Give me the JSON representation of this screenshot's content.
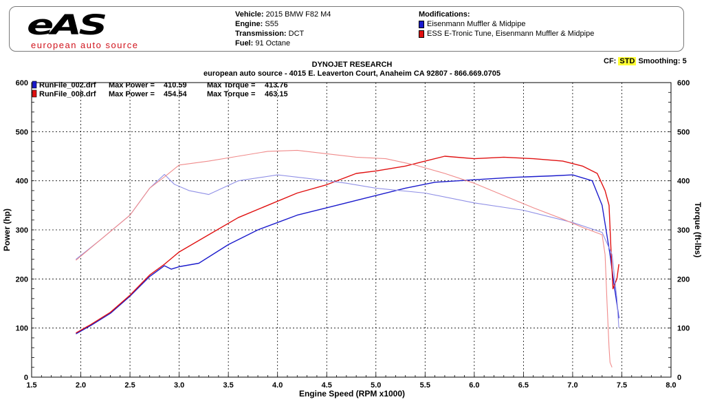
{
  "logo": {
    "word": "eAS",
    "subtitle": "european auto source"
  },
  "vehicle_info": {
    "vehicle_label": "Vehicle:",
    "vehicle": "2015 BMW F82 M4",
    "engine_label": "Engine:",
    "engine": "S55",
    "transmission_label": "Transmission:",
    "transmission": "DCT",
    "fuel_label": "Fuel:",
    "fuel": "91 Octane"
  },
  "modifications": {
    "title": "Modifications:",
    "items": [
      "Eisenmann Muffler & Midpipe",
      "ESS E-Tronic Tune, Eisenmann Muffler & Midpipe"
    ]
  },
  "header": {
    "title": "DYNOJET RESEARCH",
    "subtitle": "european auto source - 4015 E. Leaverton Court, Anaheim CA 92807 - 866.669.0705"
  },
  "cf": {
    "label": "CF:",
    "value": "STD",
    "smoothing_label": "Smoothing:",
    "smoothing": "5"
  },
  "colors": {
    "run1": "#1a1acc",
    "run2": "#e01010",
    "run1_light": "#8f8fe6",
    "run2_light": "#f08a8a"
  },
  "chart_data": {
    "type": "line",
    "xlabel": "Engine Speed (RPM x1000)",
    "ylabel": "Power (hp)",
    "y2label": "Torque (ft-lbs)",
    "xlim": [
      1.5,
      8.0
    ],
    "ylim": [
      0,
      600
    ],
    "y2lim": [
      0,
      600
    ],
    "xticks": [
      "1.5",
      "2.0",
      "2.5",
      "3.0",
      "3.5",
      "4.0",
      "4.5",
      "5.0",
      "5.5",
      "6.0",
      "6.5",
      "7.0",
      "7.5",
      "8.0"
    ],
    "yticks": [
      "0",
      "100",
      "200",
      "300",
      "400",
      "500",
      "600"
    ],
    "grid": true,
    "legend": [
      {
        "file": "RunFile_002.drf",
        "power_label": "Max Power =",
        "power": "410.59",
        "torque_label": "Max Torque =",
        "torque": "413.76"
      },
      {
        "file": "RunFile_008.drf",
        "power_label": "Max Power =",
        "power": "454.54",
        "torque_label": "Max Torque =",
        "torque": "463.15"
      }
    ],
    "series": [
      {
        "name": "RunFile_002.drf Power",
        "axis": "power",
        "x": [
          1.95,
          2.1,
          2.3,
          2.5,
          2.7,
          2.85,
          2.92,
          3.0,
          3.2,
          3.5,
          3.8,
          4.0,
          4.2,
          4.5,
          4.8,
          5.0,
          5.3,
          5.6,
          6.0,
          6.4,
          6.8,
          7.0,
          7.2,
          7.3,
          7.38,
          7.42,
          7.45,
          7.47
        ],
        "y": [
          88,
          105,
          130,
          165,
          205,
          227,
          220,
          225,
          232,
          270,
          300,
          315,
          330,
          345,
          360,
          370,
          385,
          397,
          402,
          407,
          410,
          412,
          400,
          350,
          250,
          190,
          150,
          120
        ]
      },
      {
        "name": "RunFile_008.drf Power",
        "axis": "power",
        "x": [
          1.95,
          2.1,
          2.3,
          2.5,
          2.7,
          2.85,
          3.0,
          3.3,
          3.6,
          3.9,
          4.2,
          4.5,
          4.8,
          5.0,
          5.3,
          5.5,
          5.7,
          6.0,
          6.3,
          6.6,
          6.9,
          7.1,
          7.25,
          7.33,
          7.37,
          7.39,
          7.41,
          7.45,
          7.47
        ],
        "y": [
          90,
          107,
          132,
          167,
          208,
          230,
          255,
          290,
          325,
          350,
          375,
          392,
          415,
          420,
          430,
          440,
          450,
          445,
          448,
          445,
          440,
          430,
          415,
          380,
          350,
          260,
          180,
          200,
          230
        ]
      },
      {
        "name": "RunFile_002.drf Torque",
        "axis": "torque",
        "x": [
          1.95,
          2.2,
          2.5,
          2.7,
          2.85,
          2.95,
          3.1,
          3.3,
          3.6,
          4.0,
          4.3,
          4.7,
          5.0,
          5.5,
          6.0,
          6.5,
          7.0,
          7.3,
          7.4,
          7.45,
          7.47
        ],
        "y": [
          240,
          280,
          330,
          385,
          413,
          393,
          380,
          372,
          400,
          412,
          405,
          395,
          385,
          375,
          355,
          340,
          315,
          295,
          250,
          160,
          100
        ]
      },
      {
        "name": "RunFile_008.drf Torque",
        "axis": "torque",
        "x": [
          1.95,
          2.2,
          2.5,
          2.7,
          2.85,
          3.0,
          3.3,
          3.6,
          3.9,
          4.2,
          4.5,
          4.8,
          5.1,
          5.4,
          5.7,
          6.0,
          6.3,
          6.6,
          6.9,
          7.1,
          7.3,
          7.33,
          7.35,
          7.37,
          7.38,
          7.4
        ],
        "y": [
          238,
          280,
          330,
          385,
          408,
          432,
          440,
          450,
          460,
          462,
          455,
          448,
          445,
          432,
          415,
          395,
          370,
          345,
          322,
          305,
          290,
          250,
          150,
          60,
          30,
          20
        ]
      }
    ]
  }
}
